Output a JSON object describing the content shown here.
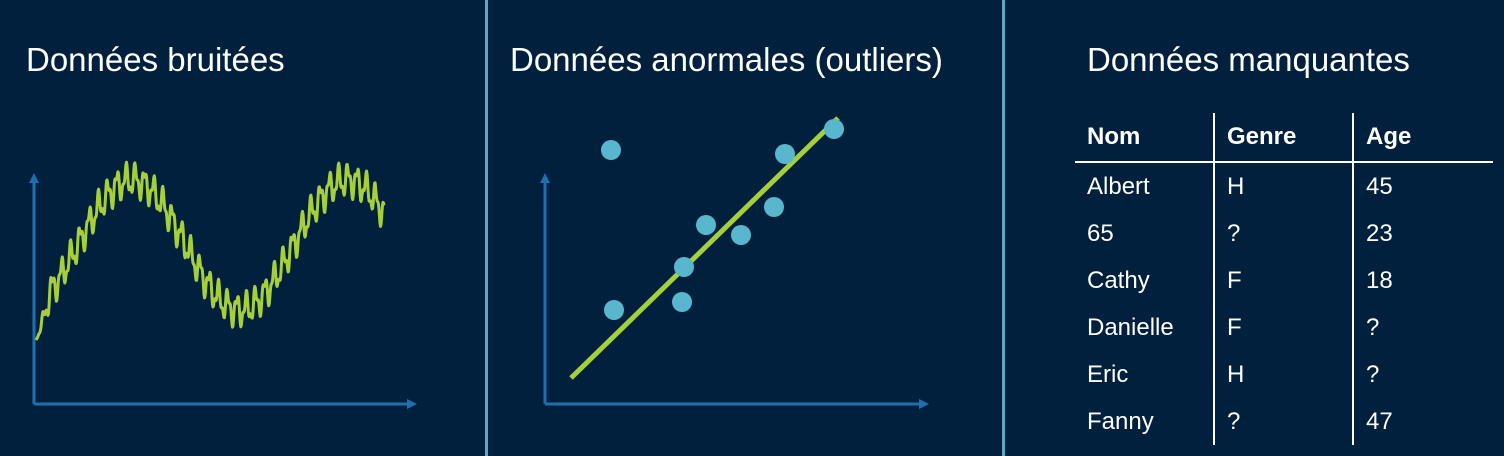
{
  "colors": {
    "background": "#01203d",
    "divider": "#5aa8c4",
    "axis": "#1e6fb0",
    "signal_line": "#a6cf39",
    "points": "#58b7cc",
    "text": "#ffffff"
  },
  "panels": {
    "noisy": {
      "title": "Données bruitées",
      "icon": "noisy-signal-line"
    },
    "outliers": {
      "title": "Données anormales (outliers)",
      "icon": "scatter-with-fit-line"
    },
    "missing": {
      "title": "Données manquantes",
      "table": {
        "headers": [
          "Nom",
          "Genre",
          "Age"
        ],
        "rows": [
          [
            "Albert",
            "H",
            "45"
          ],
          [
            "65",
            "?",
            "23"
          ],
          [
            "Cathy",
            "F",
            "18"
          ],
          [
            "Danielle",
            "F",
            "?"
          ],
          [
            "Eric",
            "H",
            "?"
          ],
          [
            "Fanny",
            "?",
            "47"
          ]
        ]
      }
    }
  }
}
